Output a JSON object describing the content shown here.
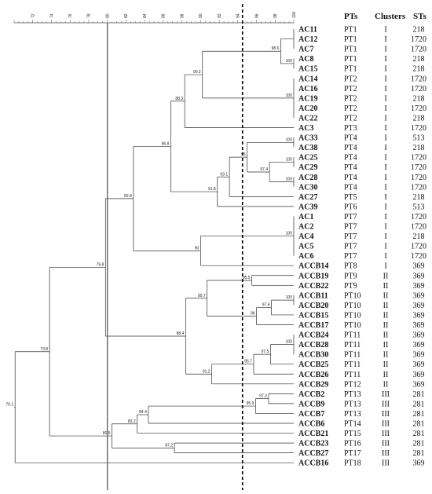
{
  "scale": {
    "min": 70,
    "max": 100,
    "ticks": [
      72,
      74,
      76,
      78,
      80,
      82,
      84,
      86,
      88,
      90,
      92,
      94,
      96,
      98,
      100
    ],
    "solid_line_at": 80,
    "dashed_line_at": 94.5
  },
  "columns": {
    "pts": "PTs",
    "clusters": "Clusters",
    "sts": "STs"
  },
  "leaves": [
    {
      "name": "AC11",
      "pt": "PT1",
      "cluster": "I",
      "st": "218"
    },
    {
      "name": "AC12",
      "pt": "PT1",
      "cluster": "I",
      "st": "1720"
    },
    {
      "name": "AC7",
      "pt": "PT1",
      "cluster": "I",
      "st": "1720"
    },
    {
      "name": "AC8",
      "pt": "PT1",
      "cluster": "I",
      "st": "218"
    },
    {
      "name": "AC15",
      "pt": "PT1",
      "cluster": "I",
      "st": "218"
    },
    {
      "name": "AC14",
      "pt": "PT2",
      "cluster": "I",
      "st": "1720"
    },
    {
      "name": "AC16",
      "pt": "PT2",
      "cluster": "I",
      "st": "1720"
    },
    {
      "name": "AC19",
      "pt": "PT2",
      "cluster": "I",
      "st": "218"
    },
    {
      "name": "AC20",
      "pt": "PT2",
      "cluster": "I",
      "st": "1720"
    },
    {
      "name": "AC22",
      "pt": "PT2",
      "cluster": "I",
      "st": "218"
    },
    {
      "name": "AC3",
      "pt": "PT3",
      "cluster": "I",
      "st": "1720"
    },
    {
      "name": "AC33",
      "pt": "PT4",
      "cluster": "I",
      "st": "513"
    },
    {
      "name": "AC38",
      "pt": "PT4",
      "cluster": "I",
      "st": "218"
    },
    {
      "name": "AC25",
      "pt": "PT4",
      "cluster": "I",
      "st": "1720"
    },
    {
      "name": "AC29",
      "pt": "PT4",
      "cluster": "I",
      "st": "1720"
    },
    {
      "name": "AC28",
      "pt": "PT4",
      "cluster": "I",
      "st": "1720"
    },
    {
      "name": "AC30",
      "pt": "PT4",
      "cluster": "I",
      "st": "1720"
    },
    {
      "name": "AC27",
      "pt": "PT5",
      "cluster": "I",
      "st": "218"
    },
    {
      "name": "AC39",
      "pt": "PT6",
      "cluster": "I",
      "st": "513"
    },
    {
      "name": "AC1",
      "pt": "PT7",
      "cluster": "I",
      "st": "1720"
    },
    {
      "name": "AC2",
      "pt": "PT7",
      "cluster": "I",
      "st": "1720"
    },
    {
      "name": "AC4",
      "pt": "PT7",
      "cluster": "I",
      "st": "218"
    },
    {
      "name": "AC5",
      "pt": "PT7",
      "cluster": "I",
      "st": "1720"
    },
    {
      "name": "AC6",
      "pt": "PT7",
      "cluster": "I",
      "st": "1720"
    },
    {
      "name": "ACCB14",
      "pt": "PT8",
      "cluster": "I",
      "st": "369"
    },
    {
      "name": "ACCB19",
      "pt": "PT9",
      "cluster": "II",
      "st": "369"
    },
    {
      "name": "ACCB22",
      "pt": "PT9",
      "cluster": "II",
      "st": "369"
    },
    {
      "name": "ACCB11",
      "pt": "PT10",
      "cluster": "II",
      "st": "369"
    },
    {
      "name": "ACCB20",
      "pt": "PT10",
      "cluster": "II",
      "st": "369"
    },
    {
      "name": "ACCB15",
      "pt": "PT10",
      "cluster": "II",
      "st": "369"
    },
    {
      "name": "ACCB17",
      "pt": "PT10",
      "cluster": "II",
      "st": "369"
    },
    {
      "name": "ACCB24",
      "pt": "PT11",
      "cluster": "II",
      "st": "369"
    },
    {
      "name": "ACCB28",
      "pt": "PT11",
      "cluster": "II",
      "st": "369"
    },
    {
      "name": "ACCB30",
      "pt": "PT11",
      "cluster": "II",
      "st": "369"
    },
    {
      "name": "ACCB25",
      "pt": "PT11",
      "cluster": "II",
      "st": "369"
    },
    {
      "name": "ACCB26",
      "pt": "PT11",
      "cluster": "II",
      "st": "369"
    },
    {
      "name": "ACCB29",
      "pt": "PT12",
      "cluster": "II",
      "st": "369"
    },
    {
      "name": "ACCB2",
      "pt": "PT13",
      "cluster": "III",
      "st": "281"
    },
    {
      "name": "ACCB9",
      "pt": "PT13",
      "cluster": "III",
      "st": "281"
    },
    {
      "name": "ACCB7",
      "pt": "PT13",
      "cluster": "III",
      "st": "281"
    },
    {
      "name": "ACCB6",
      "pt": "PT14",
      "cluster": "III",
      "st": "281"
    },
    {
      "name": "ACCB21",
      "pt": "PT15",
      "cluster": "III",
      "st": "281"
    },
    {
      "name": "ACCB23",
      "pt": "PT16",
      "cluster": "III",
      "st": "281"
    },
    {
      "name": "ACCB27",
      "pt": "PT17",
      "cluster": "III",
      "st": "281"
    },
    {
      "name": "ACCB16",
      "pt": "PT18",
      "cluster": "III",
      "st": "369"
    }
  ],
  "tree": {
    "sim": 70.1,
    "label": "70.1",
    "children": [
      {
        "sim": 73.8,
        "label": "73.8",
        "children": [
          {
            "sim": 79.8,
            "label": "79.8",
            "children": [
              {
                "sim": 82.8,
                "label": "82.8",
                "children": [
                  {
                    "sim": 86.8,
                    "label": "86.8",
                    "children": [
                      {
                        "sim": 88.3,
                        "label": "88.3",
                        "children": [
                          {
                            "sim": 90.2,
                            "label": "90.2",
                            "children": [
                              {
                                "sim": 98.6,
                                "label": "98.6",
                                "children": [
                                  {
                                    "sim": 100,
                                    "label": "",
                                    "leaves": [
                                      0,
                                      1,
                                      2
                                    ]
                                  },
                                  {
                                    "sim": 100,
                                    "label": "100",
                                    "leaves": [
                                      3,
                                      4
                                    ]
                                  }
                                ]
                              },
                              {
                                "sim": 100,
                                "label": "100",
                                "leaves": [
                                  5,
                                  6,
                                  7,
                                  8,
                                  9
                                ]
                              }
                            ]
                          },
                          {
                            "leaf": 10
                          }
                        ]
                      },
                      {
                        "sim": 91.8,
                        "label": "91.8",
                        "children": [
                          {
                            "sim": 93.1,
                            "label": "93.1",
                            "children": [
                              {
                                "sim": 95,
                                "label": "95",
                                "children": [
                                  {
                                    "sim": 100,
                                    "label": "100",
                                    "leaves": [
                                      11,
                                      12
                                    ]
                                  },
                                  {
                                    "sim": 97.4,
                                    "label": "97.4",
                                    "children": [
                                      {
                                        "sim": 100,
                                        "label": "100",
                                        "leaves": [
                                          13,
                                          14
                                        ]
                                      },
                                      {
                                        "sim": 100,
                                        "label": "100",
                                        "leaves": [
                                          15,
                                          16
                                        ]
                                      }
                                    ]
                                  }
                                ]
                              },
                              {
                                "leaf": 17
                              }
                            ]
                          },
                          {
                            "leaf": 18
                          }
                        ]
                      }
                    ]
                  },
                  {
                    "sim": 90,
                    "label": "90",
                    "children": [
                      {
                        "sim": 100,
                        "label": "100",
                        "leaves": [
                          19,
                          20,
                          21,
                          22,
                          23
                        ]
                      },
                      {
                        "leaf": 24
                      }
                    ]
                  }
                ]
              },
              {
                "sim": 88.4,
                "label": "88.4",
                "children": [
                  {
                    "sim": 90.7,
                    "label": "90.7",
                    "children": [
                      {
                        "sim": 95.5,
                        "label": "95.5",
                        "leaves": [
                          25,
                          26
                        ]
                      },
                      {
                        "sim": 96,
                        "label": "96",
                        "children": [
                          {
                            "sim": 97.6,
                            "label": "97.6",
                            "children": [
                              {
                                "sim": 100,
                                "label": "100",
                                "leaves": [
                                  27,
                                  28
                                ]
                              },
                              {
                                "leaf": 29
                              }
                            ]
                          },
                          {
                            "leaf": 30
                          }
                        ]
                      }
                    ]
                  },
                  {
                    "sim": 91.2,
                    "label": "91.2",
                    "children": [
                      {
                        "sim": 95.7,
                        "label": "95.7",
                        "children": [
                          {
                            "sim": 97.5,
                            "label": "97.5",
                            "children": [
                              {
                                "sim": 100,
                                "label": "100",
                                "leaves": [
                                  31,
                                  32,
                                  33
                                ]
                              },
                              {
                                "leaf": 34
                              }
                            ]
                          },
                          {
                            "leaf": 35
                          }
                        ]
                      },
                      {
                        "leaf": 36
                      }
                    ]
                  }
                ]
              }
            ]
          },
          {
            "sim": 80.5,
            "label": "80.5",
            "children": [
              {
                "sim": 83.2,
                "label": "83.2",
                "children": [
                  {
                    "sim": 84.4,
                    "label": "84.4",
                    "children": [
                      {
                        "sim": 95.9,
                        "label": "95.9",
                        "children": [
                          {
                            "sim": 97.3,
                            "label": "97.3",
                            "leaves": [
                              37,
                              38
                            ]
                          },
                          {
                            "leaf": 39
                          }
                        ]
                      },
                      {
                        "leaf": 40
                      }
                    ]
                  },
                  {
                    "leaf": 41
                  }
                ]
              },
              {
                "sim": 87.2,
                "label": "87.2",
                "leaves": [
                  42,
                  43
                ]
              }
            ]
          }
        ]
      },
      {
        "leaf": 44
      }
    ]
  }
}
